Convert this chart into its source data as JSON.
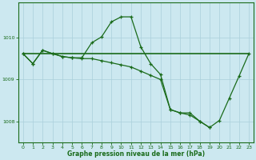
{
  "background_color": "#cce8f0",
  "grid_color": "#aacfdb",
  "line_color": "#1a6b1a",
  "xlabel": "Graphe pression niveau de la mer (hPa)",
  "xlim": [
    -0.5,
    23.5
  ],
  "ylim": [
    1007.5,
    1010.85
  ],
  "yticks": [
    1008,
    1009,
    1010
  ],
  "xticks": [
    0,
    1,
    2,
    3,
    4,
    5,
    6,
    7,
    8,
    9,
    10,
    11,
    12,
    13,
    14,
    15,
    16,
    17,
    18,
    19,
    20,
    21,
    22,
    23
  ],
  "line1_x": [
    0,
    1,
    2,
    3,
    4,
    5,
    6,
    7,
    8,
    9,
    10,
    11,
    12,
    13,
    14,
    15,
    16,
    17,
    18,
    19,
    20,
    21,
    22,
    23
  ],
  "line1_y": [
    1009.62,
    1009.38,
    1009.7,
    1009.62,
    1009.55,
    1009.52,
    1009.52,
    1009.88,
    1010.02,
    1010.38,
    1010.5,
    1010.5,
    1009.78,
    1009.38,
    1009.12,
    1008.28,
    1008.2,
    1008.2,
    1008.0,
    1007.85,
    1008.02,
    1008.55,
    1009.08,
    1009.62
  ],
  "line2_x": [
    0,
    23
  ],
  "line2_y": [
    1009.62,
    1009.62
  ],
  "line3_x": [
    0,
    1,
    2,
    3,
    4,
    5,
    6,
    7,
    8,
    9,
    10,
    11,
    12,
    13,
    14,
    15,
    16,
    17,
    18,
    19
  ],
  "line3_y": [
    1009.62,
    1009.38,
    1009.7,
    1009.62,
    1009.55,
    1009.52,
    1009.5,
    1009.5,
    1009.45,
    1009.4,
    1009.35,
    1009.3,
    1009.2,
    1009.1,
    1009.0,
    1008.28,
    1008.2,
    1008.15,
    1008.0,
    1007.85
  ]
}
